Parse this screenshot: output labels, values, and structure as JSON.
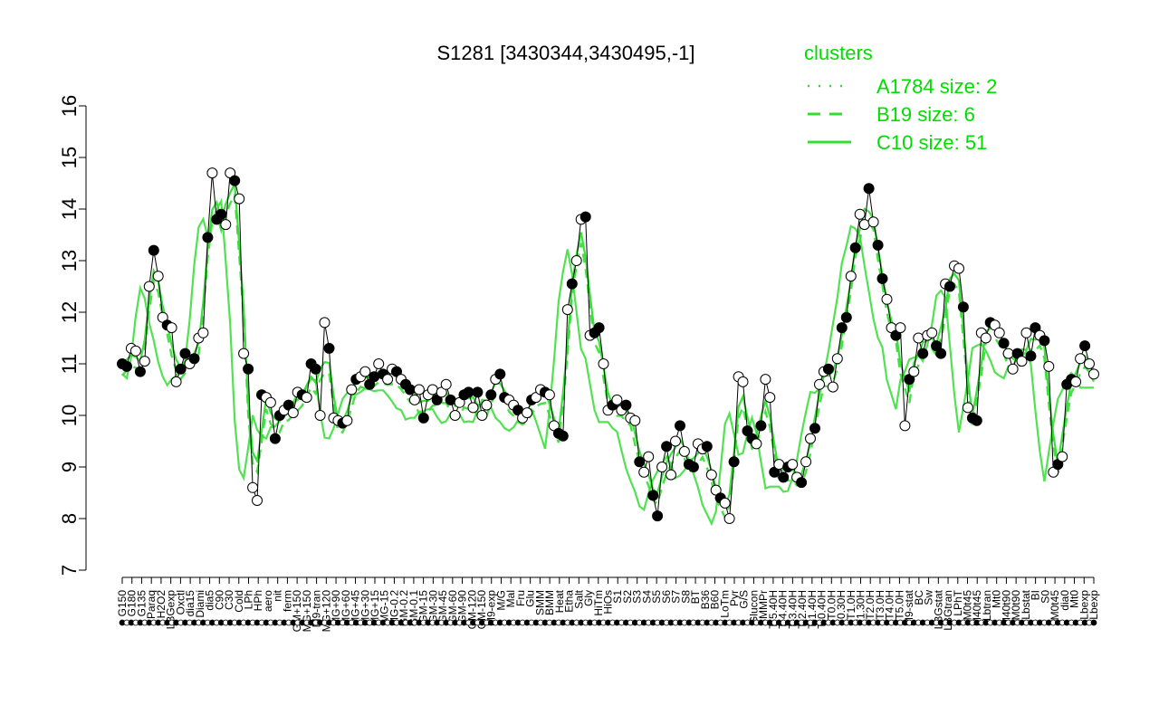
{
  "chart_data": {
    "type": "line",
    "title": "S1281 [3430344,3430495,-1]",
    "xlabel": "",
    "ylabel": "",
    "ylim": [
      7,
      16
    ],
    "yticks": [
      7,
      8,
      9,
      10,
      11,
      12,
      13,
      14,
      15,
      16
    ],
    "grid": false,
    "legend": {
      "title": "clusters",
      "placement": "top-right",
      "entries": [
        {
          "label": "A1784 size: 2",
          "style": "dotted"
        },
        {
          "label": "B19 size: 6",
          "style": "dashed"
        },
        {
          "label": "C10 size: 51",
          "style": "solid"
        }
      ]
    },
    "colors": {
      "series": "#33dd33",
      "legend": "#00dd00",
      "points": "#000000",
      "point_fill_open": "#ffffff"
    },
    "x_tick_labels": [
      "G150",
      "G180",
      "G135",
      "Paraq",
      "H2O2",
      "LBGexp",
      "Oxctl",
      "dia15",
      "Diami",
      "dia5",
      "C90",
      "C30",
      "Cold",
      "LPh",
      "HPh",
      "aero",
      "nit",
      "ferm",
      "GM+150",
      "MG+150",
      "M9-tran",
      "MG+120",
      "MG+90",
      "MG+60",
      "MG+45",
      "MG+30",
      "MG+15",
      "MG-15",
      "MG-0.2",
      "GM-0.2",
      "GM-0.1",
      "GM-15",
      "GM-30",
      "GM-45",
      "GM-60",
      "GM-90",
      "GM-120",
      "GM-150",
      "M9-exp",
      "M/G",
      "Mal",
      "Fru",
      "Glu",
      "SMM",
      "BMM",
      "Heat",
      "Etha",
      "Salt",
      "Gly",
      "HiTm",
      "HiOs",
      "S1",
      "S2",
      "S3",
      "S4",
      "S5",
      "S6",
      "S7",
      "S8",
      "BT",
      "B36",
      "B60",
      "LoTm",
      "Pyr",
      "G/S",
      "Glucon",
      "SMMPr",
      "T-5.40H",
      "T-4.40H",
      "T-3.40H",
      "T-2.40H",
      "T-1.40H",
      "T-0.40H",
      "T0.0H",
      "T0.30H",
      "T1.0H",
      "T1.30H",
      "T2.0H",
      "T3.0H",
      "T4.0H",
      "T5.0H",
      "M9-stat",
      "BC",
      "Sw",
      "LBGstat",
      "LBGtran",
      "LPhT",
      "M0t45",
      "M40t45",
      "Lbtran",
      "Mt0",
      "M40t90",
      "M0t90",
      "Lbstat",
      "BI",
      "S0",
      "M0t45",
      "dia0",
      "Mt0",
      "Lbexp",
      "Lbexp"
    ],
    "series": [
      {
        "values": [
          11.0,
          10.95,
          11.3,
          11.25,
          10.85,
          11.05,
          12.5,
          13.2,
          12.7,
          11.9,
          11.75,
          11.7,
          10.65,
          10.9,
          11.2,
          11.0,
          11.1,
          11.5,
          11.6,
          13.45,
          14.7,
          13.8,
          13.9,
          13.7,
          14.7,
          14.55,
          14.2,
          11.2,
          10.9,
          8.6,
          8.35,
          10.4,
          10.35,
          10.25,
          9.55,
          10.0,
          10.1,
          10.2,
          10.05,
          10.45,
          10.4,
          10.35,
          11.0,
          10.9,
          10.0,
          11.8,
          11.3,
          9.95,
          9.9,
          9.85,
          9.9,
          10.5,
          10.7,
          10.75,
          10.85,
          10.6,
          10.75,
          11.0,
          10.8,
          10.7,
          10.9,
          10.85,
          10.7,
          10.6,
          10.5,
          10.3,
          10.5,
          9.95,
          10.4,
          10.5,
          10.3,
          10.45,
          10.6,
          10.3,
          10.0,
          10.25,
          10.4,
          10.45,
          10.15,
          10.45,
          10.0,
          10.2,
          10.4,
          10.7,
          10.8,
          10.35,
          10.3,
          10.2,
          10.1,
          9.95,
          10.05,
          10.3,
          10.35,
          10.5,
          10.45,
          10.4,
          9.8,
          9.65,
          9.6,
          12.05,
          12.55,
          13.0,
          13.8,
          13.85,
          11.55,
          11.6,
          11.7,
          11.0,
          10.1,
          10.2,
          10.3,
          10.1,
          10.2,
          9.95,
          9.9,
          9.1,
          8.9,
          9.2,
          8.45,
          8.05,
          9.0,
          9.4,
          8.85,
          9.5,
          9.8,
          9.3,
          9.05,
          9.0,
          9.45,
          9.35,
          9.4,
          8.85,
          8.55,
          8.4,
          8.3,
          8.0,
          9.1,
          10.75,
          10.65,
          9.7,
          9.55,
          9.45,
          9.8,
          10.7,
          10.35,
          8.9,
          9.05,
          8.8,
          9.0,
          9.05,
          8.8,
          8.7,
          9.1,
          9.55,
          9.75,
          10.6,
          10.85,
          10.9,
          10.55,
          11.1,
          11.7,
          11.9,
          12.7,
          13.25,
          13.9,
          13.7,
          14.4,
          13.75,
          13.3,
          12.65,
          12.25,
          11.7,
          11.55,
          11.7,
          9.8,
          10.7,
          10.85,
          11.5,
          11.2,
          11.55,
          11.6,
          11.35,
          11.2,
          12.55,
          12.5,
          12.9,
          12.85,
          12.1,
          10.15,
          9.95,
          9.9,
          11.6,
          11.5,
          11.8,
          11.75,
          11.6,
          11.4,
          11.2,
          10.9,
          11.2,
          11.05,
          11.6,
          11.15,
          11.7,
          11.55,
          11.45,
          10.95,
          8.9,
          9.05,
          9.2,
          10.6,
          10.7,
          10.65,
          11.1,
          11.35,
          11.0,
          10.8
        ]
      }
    ]
  }
}
